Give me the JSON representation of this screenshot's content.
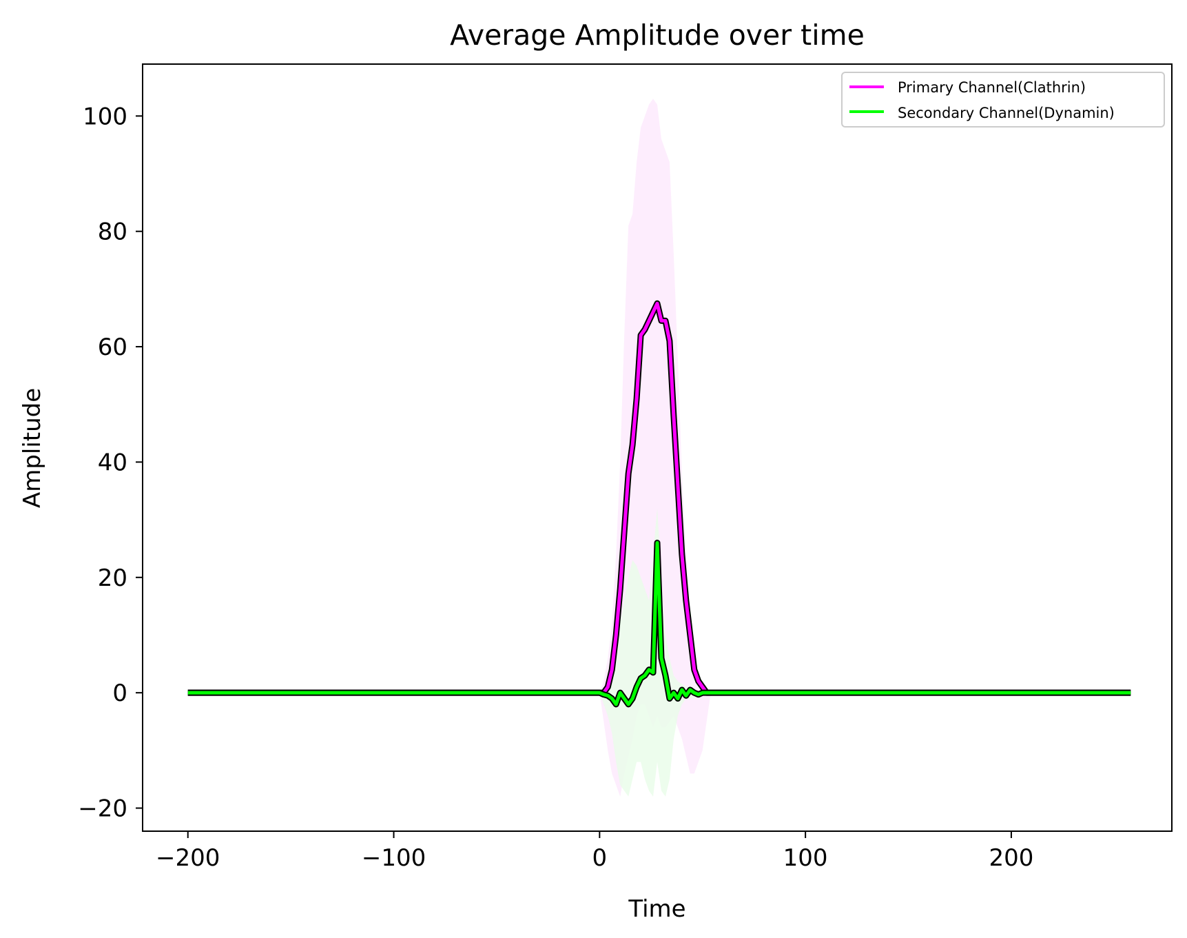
{
  "chart_data": {
    "type": "line",
    "title": "Average Amplitude over time",
    "xlabel": "Time",
    "ylabel": "Amplitude",
    "xlim": [
      -222,
      278
    ],
    "ylim": [
      -24,
      109
    ],
    "xticks": [
      -200,
      -100,
      0,
      100,
      200
    ],
    "yticks": [
      -20,
      0,
      20,
      40,
      60,
      80,
      100
    ],
    "xtick_labels": [
      "−200",
      "−100",
      "0",
      "100",
      "200"
    ],
    "ytick_labels": [
      "−20",
      "0",
      "20",
      "40",
      "60",
      "80",
      "100"
    ],
    "grid": false,
    "legend_position": "upper right",
    "series": [
      {
        "name": "Primary Channel(Clathrin)",
        "color": "#ff00ff",
        "band_color": "#fce8fc",
        "x": [
          -200,
          -100,
          0,
          2,
          4,
          6,
          8,
          10,
          12,
          14,
          16,
          18,
          20,
          22,
          24,
          26,
          28,
          30,
          32,
          34,
          36,
          38,
          40,
          42,
          44,
          46,
          48,
          50,
          52,
          54,
          60,
          100,
          200,
          258
        ],
        "values": [
          0,
          0,
          0,
          0,
          1,
          4,
          10,
          18,
          28,
          38,
          43,
          51,
          62,
          63,
          64.5,
          66,
          67.5,
          64.5,
          64.5,
          61,
          48,
          36,
          24,
          16,
          10,
          4,
          2,
          1,
          0,
          0,
          0,
          0,
          0,
          0
        ],
        "band_lower": [
          0,
          0,
          0,
          -5,
          -10,
          -14,
          -16,
          -18,
          -14,
          -11,
          -8,
          -4,
          -2,
          -2,
          -4,
          -6,
          -4,
          -6,
          -6,
          -5,
          -4,
          -6,
          -8,
          -11,
          -14,
          -14,
          -12,
          -10,
          -5,
          0,
          0,
          0,
          0,
          0
        ],
        "band_upper": [
          0,
          0,
          0,
          2,
          6,
          12,
          24,
          40,
          62,
          81,
          83,
          92,
          98,
          100,
          102,
          103,
          102,
          96,
          94,
          92,
          76,
          58,
          38,
          24,
          12,
          6,
          3,
          2,
          0,
          0,
          0,
          0,
          0,
          0
        ]
      },
      {
        "name": "Secondary Channel(Dynamin)",
        "color": "#00ff00",
        "band_color": "#e8fce8",
        "x": [
          -200,
          -100,
          0,
          2,
          4,
          6,
          8,
          10,
          12,
          14,
          16,
          18,
          20,
          22,
          24,
          26,
          28,
          30,
          32,
          34,
          36,
          38,
          40,
          42,
          44,
          46,
          48,
          50,
          52,
          54,
          60,
          100,
          200,
          258
        ],
        "values": [
          0,
          0,
          0,
          -0.3,
          -0.5,
          -1,
          -2,
          0,
          -1,
          -2,
          -1,
          1,
          2.5,
          3,
          4,
          3.5,
          26,
          6,
          3,
          -1,
          0,
          -1,
          0.5,
          -0.5,
          0.5,
          0,
          -0.3,
          0,
          0,
          0,
          0,
          0,
          0,
          0
        ],
        "band_lower": [
          0,
          0,
          0,
          -2,
          -4,
          -7,
          -12,
          -16,
          -17,
          -18,
          -15,
          -12,
          -12,
          -15,
          -17,
          -18,
          -12,
          -17,
          -18,
          -15,
          -8,
          -4,
          -2,
          -1,
          -1,
          -1,
          -0.5,
          0,
          0,
          0,
          0,
          0,
          0,
          0
        ],
        "band_upper": [
          0,
          0,
          0,
          1,
          2,
          4,
          8,
          12,
          16,
          20,
          23,
          22,
          20,
          18,
          16,
          24,
          32,
          20,
          10,
          6,
          3,
          2,
          1.5,
          1,
          1,
          0.5,
          0.3,
          0,
          0,
          0,
          0,
          0,
          0,
          0
        ]
      }
    ]
  }
}
